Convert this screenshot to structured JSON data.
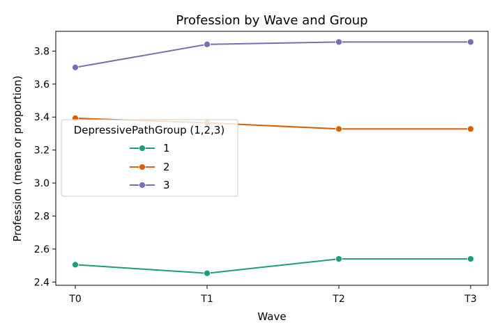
{
  "chart_data": {
    "type": "line",
    "title": "Profession by Wave and Group",
    "xlabel": "Wave",
    "ylabel": "Profession (mean or proportion)",
    "categories": [
      "T0",
      "T1",
      "T2",
      "T3"
    ],
    "ylim": [
      2.38,
      3.92
    ],
    "yticks": [
      2.4,
      2.6,
      2.8,
      3.0,
      3.2,
      3.4,
      3.6,
      3.8
    ],
    "ytick_labels": [
      "2.4",
      "2.6",
      "2.8",
      "3.0",
      "3.2",
      "3.4",
      "3.6",
      "3.8"
    ],
    "grid": false,
    "legend": {
      "title": "DepressivePathGroup (1,2,3)",
      "position": "center-left"
    },
    "series": [
      {
        "name": "1",
        "color": "#1b9e77",
        "values": [
          2.505,
          2.453,
          2.54,
          2.54
        ]
      },
      {
        "name": "2",
        "color": "#d95f02",
        "values": [
          3.393,
          3.365,
          3.328,
          3.328
        ]
      },
      {
        "name": "3",
        "color": "#7570b3",
        "values": [
          3.701,
          3.841,
          3.855,
          3.855
        ]
      }
    ]
  }
}
